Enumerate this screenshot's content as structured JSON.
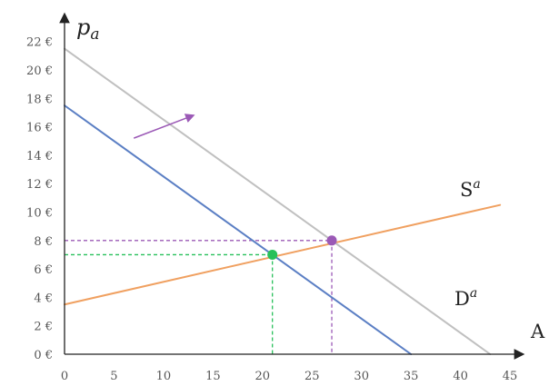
{
  "chart_data": {
    "type": "line",
    "title": "",
    "xlabel": "A",
    "ylabel_base": "p",
    "ylabel_sub": "a",
    "xlim": [
      0,
      45
    ],
    "ylim": [
      0,
      22
    ],
    "x_ticks": [
      0,
      5,
      10,
      15,
      20,
      25,
      30,
      35,
      40,
      45
    ],
    "x_tick_labels": [
      "0",
      "5",
      "10",
      "15",
      "20",
      "25",
      "30",
      "35",
      "40",
      "45"
    ],
    "y_ticks": [
      0,
      2,
      4,
      6,
      8,
      10,
      12,
      14,
      16,
      18,
      20,
      22
    ],
    "y_tick_labels": [
      "0 €",
      "2 €",
      "4 €",
      "6 €",
      "8 €",
      "10 €",
      "12 €",
      "14 €",
      "16 €",
      "18 €",
      "20 €",
      "22 €"
    ],
    "grid": false,
    "series": [
      {
        "key": "supply",
        "label_base": "S",
        "label_sup": "a",
        "color": "#f0a060",
        "points": [
          [
            0,
            3.5
          ],
          [
            44,
            10.5
          ]
        ]
      },
      {
        "key": "demand",
        "label_base": "D",
        "label_sup": "a",
        "color": "#c0c0c0",
        "points": [
          [
            0,
            21.5
          ],
          [
            43,
            0
          ]
        ]
      },
      {
        "key": "demand_shifted",
        "color": "#5b7fc4",
        "points": [
          [
            0,
            17.5
          ],
          [
            35,
            0
          ]
        ]
      }
    ],
    "equilibria": [
      {
        "key": "original",
        "x": 27,
        "y": 8,
        "color": "#9b59b6",
        "guide_color": "#9b59b6"
      },
      {
        "key": "shifted",
        "x": 21,
        "y": 7,
        "color": "#27c05a",
        "guide_color": "#27c05a"
      }
    ],
    "shift_arrow": {
      "from": [
        7,
        15.2
      ],
      "to": [
        13,
        16.8
      ],
      "color": "#9b59b6"
    }
  }
}
